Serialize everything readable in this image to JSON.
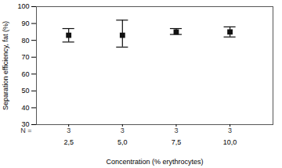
{
  "chart_data": {
    "type": "scatter",
    "marker": "square",
    "color": "#111111",
    "xlabel": "Concentration (% erythrocytes)",
    "ylabel": "Separation efficiency, fat (%)",
    "x": [
      2.5,
      5.0,
      7.5,
      10.0
    ],
    "values": [
      83,
      83,
      85,
      85
    ],
    "error_lower": [
      4,
      7,
      1.5,
      3
    ],
    "error_upper": [
      4,
      9,
      2,
      3
    ],
    "n": [
      3,
      3,
      3,
      3
    ],
    "n_label": "N =",
    "xlim": [
      1.0,
      12.0
    ],
    "xticks": [
      {
        "value": 2.5,
        "label": "2,5"
      },
      {
        "value": 5.0,
        "label": "5,0"
      },
      {
        "value": 7.5,
        "label": "7,5"
      },
      {
        "value": 10.0,
        "label": "10,0"
      }
    ],
    "ylim": [
      30,
      100
    ],
    "yticks": [
      30,
      40,
      50,
      60,
      70,
      80,
      90,
      100
    ],
    "grid": false
  }
}
